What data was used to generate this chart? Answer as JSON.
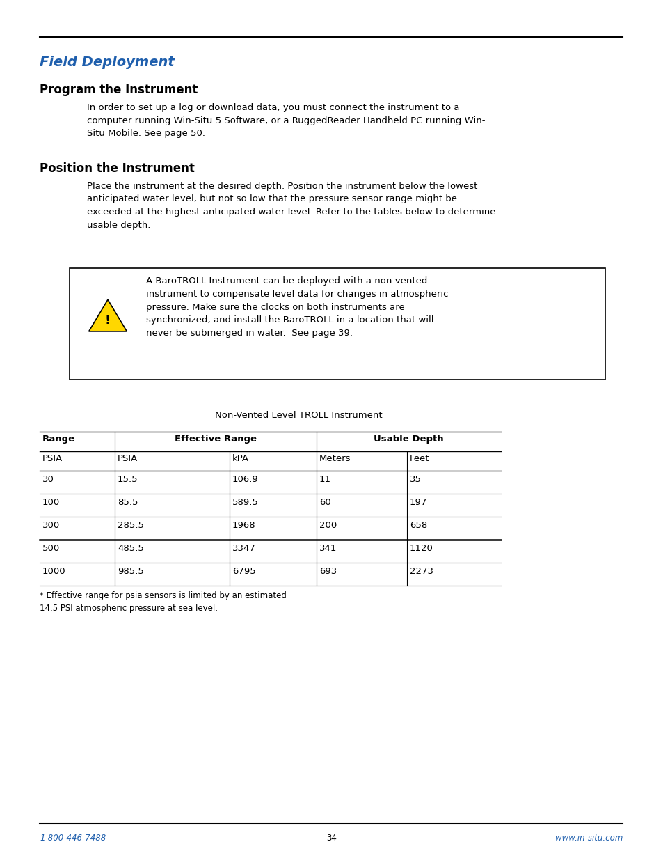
{
  "title_italic": "Field Deployment",
  "title_color": "#1F5FAD",
  "section1_heading": "Program the Instrument",
  "section1_body": "In order to set up a log or download data, you must connect the instrument to a\ncomputer running Win-Situ 5 Software, or a RuggedReader Handheld PC running Win-\nSitu Mobile. See page 50.",
  "section2_heading": "Position the Instrument",
  "section2_body": "Place the instrument at the desired depth. Position the instrument below the lowest\nanticipated water level, but not so low that the pressure sensor range might be\nexceeded at the highest anticipated water level. Refer to the tables below to determine\nusable depth.",
  "warning_text": "A BaroTROLL Instrument can be deployed with a non-vented\ninstrument to compensate level data for changes in atmospheric\npressure. Make sure the clocks on both instruments are\nsynchronized, and install the BaroTROLL in a location that will\nnever be submerged in water.  See page 39.",
  "table_title": "Non-Vented Level TROLL Instrument",
  "table_sub_headers": [
    "PSIA",
    "PSIA",
    "kPA",
    "Meters",
    "Feet"
  ],
  "table_data": [
    [
      "30",
      "15.5",
      "106.9",
      "11",
      "35"
    ],
    [
      "100",
      "85.5",
      "589.5",
      "60",
      "197"
    ],
    [
      "300",
      "285.5",
      "1968",
      "200",
      "658"
    ],
    [
      "500",
      "485.5",
      "3347",
      "341",
      "1120"
    ],
    [
      "1000",
      "985.5",
      "6795",
      "693",
      "2273"
    ]
  ],
  "table_note": "* Effective range for psia sensors is limited by an estimated\n14.5 PSI atmospheric pressure at sea level.",
  "footer_left": "1-800-446-7488",
  "footer_center": "34",
  "footer_right": "www.in-situ.com",
  "footer_color": "#1F5FAD",
  "bg_color": "#ffffff",
  "text_color": "#000000"
}
